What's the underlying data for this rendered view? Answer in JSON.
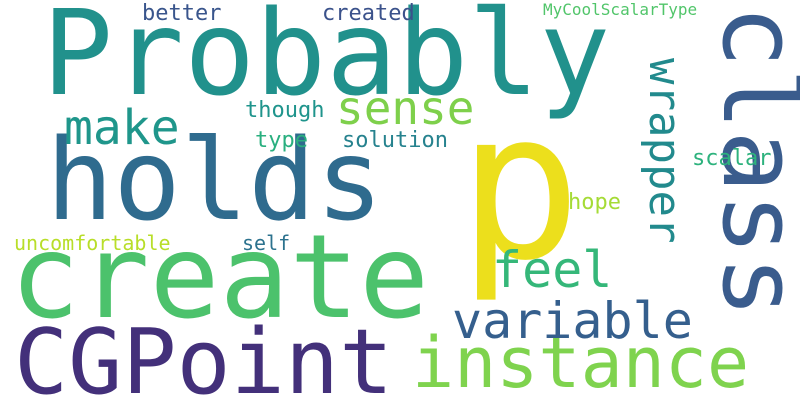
{
  "word_cloud": {
    "background": "#ffffff",
    "words": {
      "probably": {
        "text": "Probably",
        "color": "#21918c"
      },
      "holds": {
        "text": "holds",
        "color": "#2f6b8e"
      },
      "p": {
        "text": "p",
        "color": "#ecdf1c"
      },
      "class": {
        "text": "class",
        "color": "#3a5c8d",
        "orientation": "vertical"
      },
      "create": {
        "text": "create",
        "color": "#4cc26c"
      },
      "cgpoint": {
        "text": "CGPoint",
        "color": "#43307a"
      },
      "instance": {
        "text": "instance",
        "color": "#7fd34e"
      },
      "variable": {
        "text": "variable",
        "color": "#355f8d"
      },
      "feel": {
        "text": "feel",
        "color": "#35b779"
      },
      "wrapper": {
        "text": "wrapper",
        "color": "#228a8d",
        "orientation": "vertical"
      },
      "sense": {
        "text": "sense",
        "color": "#7ed04b"
      },
      "make": {
        "text": "make",
        "color": "#1f968b"
      },
      "better": {
        "text": "better",
        "color": "#39558c"
      },
      "created": {
        "text": "created",
        "color": "#3b528b"
      },
      "mycoolscalartype": {
        "text": "MyCoolScalarType",
        "color": "#51c56a"
      },
      "though": {
        "text": "though",
        "color": "#1f948c"
      },
      "type": {
        "text": "type",
        "color": "#29af7f"
      },
      "solution": {
        "text": "solution",
        "color": "#26828e"
      },
      "scalar": {
        "text": "scalar",
        "color": "#2db27d"
      },
      "hope": {
        "text": "hope",
        "color": "#a5db36"
      },
      "uncomfortable": {
        "text": "uncomfortable",
        "color": "#b8de29"
      },
      "self": {
        "text": "self",
        "color": "#2c728e"
      }
    }
  }
}
